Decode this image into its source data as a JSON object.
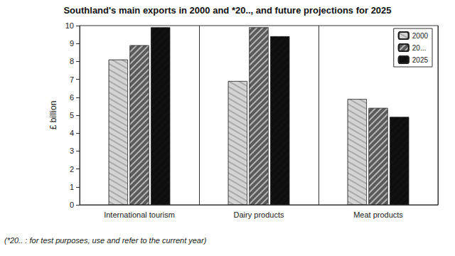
{
  "chart_data": {
    "type": "bar",
    "title": "Southland's main exports in 2000 and *20.., and future projections for 2025",
    "y_label": "£ billion",
    "categories": [
      "International tourism",
      "Dairy products",
      "Meat products"
    ],
    "series": [
      {
        "name": "2000",
        "color": "#d4d4d4",
        "values": [
          8.1,
          6.9,
          5.9
        ]
      },
      {
        "name": "20...",
        "color": "#5a5a5a",
        "values": [
          8.9,
          9.9,
          5.4
        ]
      },
      {
        "name": "2025",
        "color": "#111111",
        "values": [
          9.9,
          9.4,
          4.9
        ]
      }
    ],
    "ylim": [
      0,
      10
    ],
    "yticks": [
      0,
      1,
      2,
      3,
      4,
      5,
      6,
      7,
      8,
      9,
      10
    ],
    "grid": false,
    "legend": "top-right",
    "annotations": [
      "(*20.. : for test purposes, use and refer to the current year)"
    ]
  }
}
